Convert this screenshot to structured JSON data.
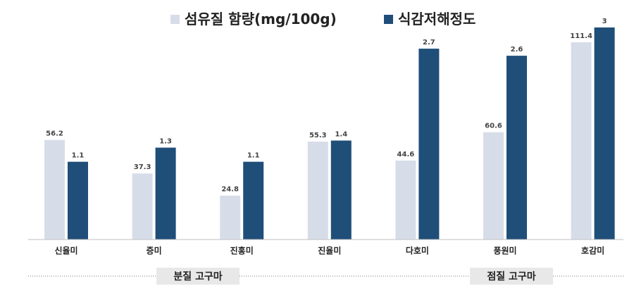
{
  "chart_data": {
    "type": "bar",
    "categories": [
      "신율미",
      "증미",
      "진홍미",
      "진율미",
      "다호미",
      "풍원미",
      "호감미"
    ],
    "series": [
      {
        "name": "섬유질 함량(mg/100g)",
        "values": [
          56.2,
          37.3,
          24.8,
          55.3,
          44.6,
          60.6,
          111.4
        ],
        "color": "#d7dde8",
        "labels": [
          "56.2",
          "37.3",
          "24.8",
          "55.3",
          "44.6",
          "60.6",
          "111.4"
        ]
      },
      {
        "name": "식감저해정도",
        "values": [
          1.1,
          1.3,
          1.1,
          1.4,
          2.7,
          2.6,
          3
        ],
        "color": "#1f4e79",
        "labels": [
          "1.1",
          "1.3",
          "1.1",
          "1.4",
          "2.7",
          "2.6",
          "3"
        ]
      }
    ],
    "groups": [
      {
        "label": "분질 고구마",
        "categories": [
          "신율미",
          "증미",
          "진홍미",
          "진율미"
        ]
      },
      {
        "label": "점질 고구마",
        "categories": [
          "다호미",
          "풍원미",
          "호감미"
        ]
      }
    ],
    "legend_position": "top",
    "grid": false
  }
}
